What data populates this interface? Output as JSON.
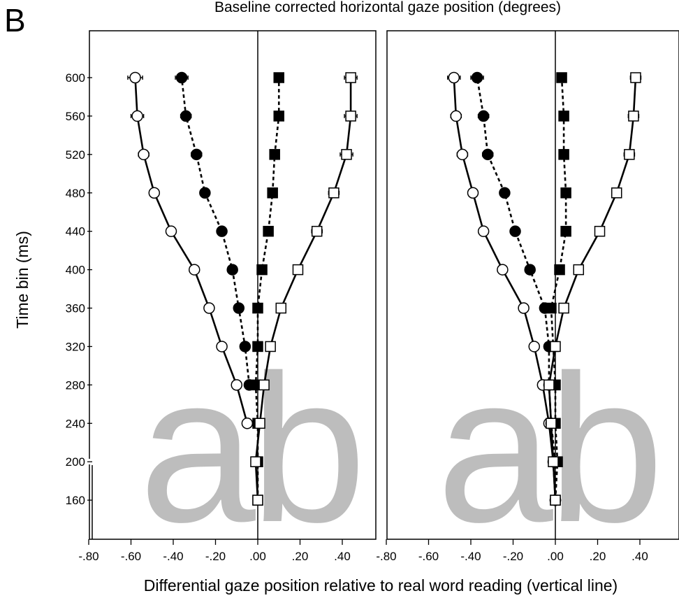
{
  "panel_letter": "B",
  "top_title": "Baseline corrected horizontal gaze position (degrees)",
  "ylabel": "Time bin (ms)",
  "xlabel": "Differential gaze position relative to real word reading (vertical line)",
  "watermark_text": "ab",
  "chart_data": [
    {
      "type": "line",
      "orientation": "horizontal-x-values-vertical-time",
      "xlim": [
        -0.82,
        0.57
      ],
      "ylim": [
        120,
        640
      ],
      "x_ticks": [
        -0.8,
        -0.6,
        -0.4,
        -0.2,
        0.0,
        0.2,
        0.4
      ],
      "x_tick_labels": [
        "-.80",
        "-.60",
        "-.40",
        "-.20",
        ".00",
        ".20",
        ".40"
      ],
      "y_ticks": [
        160,
        200,
        240,
        280,
        320,
        360,
        400,
        440,
        480,
        520,
        560,
        600
      ],
      "y_tick_labels": [
        "160",
        "200",
        "240",
        "280",
        "320",
        "360",
        "400",
        "440",
        "480",
        "520",
        "560",
        "600"
      ],
      "reference_line_x": 0,
      "series": [
        {
          "marker": "open-circle",
          "line": "solid",
          "y": [
            240,
            280,
            320,
            360,
            400,
            440,
            480,
            520,
            560,
            600
          ],
          "x": [
            -0.05,
            -0.1,
            -0.17,
            -0.23,
            -0.3,
            -0.41,
            -0.49,
            -0.54,
            -0.57,
            -0.58
          ],
          "err": [
            0.015,
            0.02,
            0.015,
            0.02,
            0.015,
            0.02,
            0.02,
            0.025,
            0.03,
            0.035
          ]
        },
        {
          "marker": "filled-circle",
          "line": "dashed",
          "y": [
            280,
            320,
            360,
            400,
            440,
            480,
            520,
            560,
            600
          ],
          "x": [
            -0.04,
            -0.06,
            -0.09,
            -0.12,
            -0.17,
            -0.25,
            -0.29,
            -0.34,
            -0.36
          ],
          "err": [
            0.015,
            0.015,
            0.015,
            0.015,
            0.02,
            0.02,
            0.025,
            0.025,
            0.03
          ]
        },
        {
          "marker": "filled-square",
          "line": "dashed",
          "y": [
            160,
            200,
            240,
            280,
            320,
            360,
            400,
            440,
            480,
            520,
            560,
            600
          ],
          "x": [
            0.0,
            0.0,
            0.0,
            -0.01,
            0.0,
            0.0,
            0.02,
            0.05,
            0.07,
            0.08,
            0.1,
            0.1
          ],
          "err": [
            0.01,
            0.01,
            0.01,
            0.015,
            0.015,
            0.015,
            0.015,
            0.015,
            0.02,
            0.02,
            0.02,
            0.02
          ]
        },
        {
          "marker": "open-square",
          "line": "solid",
          "y": [
            160,
            200,
            240,
            280,
            320,
            360,
            400,
            440,
            480,
            520,
            560,
            600
          ],
          "x": [
            0.0,
            -0.01,
            0.01,
            0.03,
            0.06,
            0.11,
            0.19,
            0.28,
            0.36,
            0.42,
            0.44,
            0.44
          ],
          "err": [
            0.01,
            0.01,
            0.01,
            0.015,
            0.02,
            0.02,
            0.02,
            0.025,
            0.025,
            0.03,
            0.03,
            0.03
          ]
        }
      ]
    },
    {
      "type": "line",
      "orientation": "horizontal-x-values-vertical-time",
      "xlim": [
        -0.82,
        0.57
      ],
      "ylim": [
        120,
        640
      ],
      "x_ticks": [
        -0.8,
        -0.6,
        -0.4,
        -0.2,
        0.0,
        0.2,
        0.4
      ],
      "x_tick_labels": [
        "-.80",
        "-.60",
        "-.40",
        "-.20",
        ".00",
        ".20",
        ".40"
      ],
      "y_ticks": [
        160,
        200,
        240,
        280,
        320,
        360,
        400,
        440,
        480,
        520,
        560,
        600
      ],
      "reference_line_x": 0,
      "series": [
        {
          "marker": "open-circle",
          "line": "solid",
          "y": [
            160,
            200,
            240,
            280,
            320,
            360,
            400,
            440,
            480,
            520,
            560,
            600
          ],
          "x": [
            0.0,
            -0.01,
            -0.03,
            -0.06,
            -0.1,
            -0.15,
            -0.25,
            -0.34,
            -0.39,
            -0.44,
            -0.47,
            -0.48
          ],
          "err": [
            0.01,
            0.01,
            0.01,
            0.015,
            0.015,
            0.015,
            0.02,
            0.02,
            0.02,
            0.025,
            0.025,
            0.03
          ]
        },
        {
          "marker": "filled-circle",
          "line": "dashed",
          "y": [
            160,
            200,
            240,
            280,
            320,
            360,
            400,
            440,
            480,
            520,
            560,
            600
          ],
          "x": [
            0.0,
            0.0,
            -0.02,
            -0.03,
            -0.03,
            -0.05,
            -0.12,
            -0.19,
            -0.24,
            -0.32,
            -0.34,
            -0.37
          ],
          "err": [
            0.01,
            0.01,
            0.01,
            0.015,
            0.015,
            0.015,
            0.015,
            0.02,
            0.02,
            0.025,
            0.025,
            0.03
          ]
        },
        {
          "marker": "filled-square",
          "line": "dashed",
          "y": [
            160,
            200,
            240,
            280,
            320,
            360,
            400,
            440,
            480,
            520,
            560,
            600
          ],
          "x": [
            0.0,
            0.01,
            0.0,
            0.0,
            -0.01,
            -0.02,
            0.02,
            0.05,
            0.05,
            0.04,
            0.04,
            0.03
          ],
          "err": [
            0.01,
            0.01,
            0.01,
            0.015,
            0.015,
            0.015,
            0.015,
            0.015,
            0.015,
            0.015,
            0.015,
            0.015
          ]
        },
        {
          "marker": "open-square",
          "line": "solid",
          "y": [
            160,
            200,
            240,
            280,
            320,
            360,
            400,
            440,
            480,
            520,
            560,
            600
          ],
          "x": [
            0.0,
            -0.01,
            -0.02,
            -0.03,
            0.0,
            0.04,
            0.11,
            0.21,
            0.29,
            0.35,
            0.37,
            0.38
          ],
          "err": [
            0.01,
            0.01,
            0.01,
            0.015,
            0.015,
            0.015,
            0.02,
            0.02,
            0.02,
            0.025,
            0.025,
            0.025
          ]
        }
      ]
    }
  ]
}
